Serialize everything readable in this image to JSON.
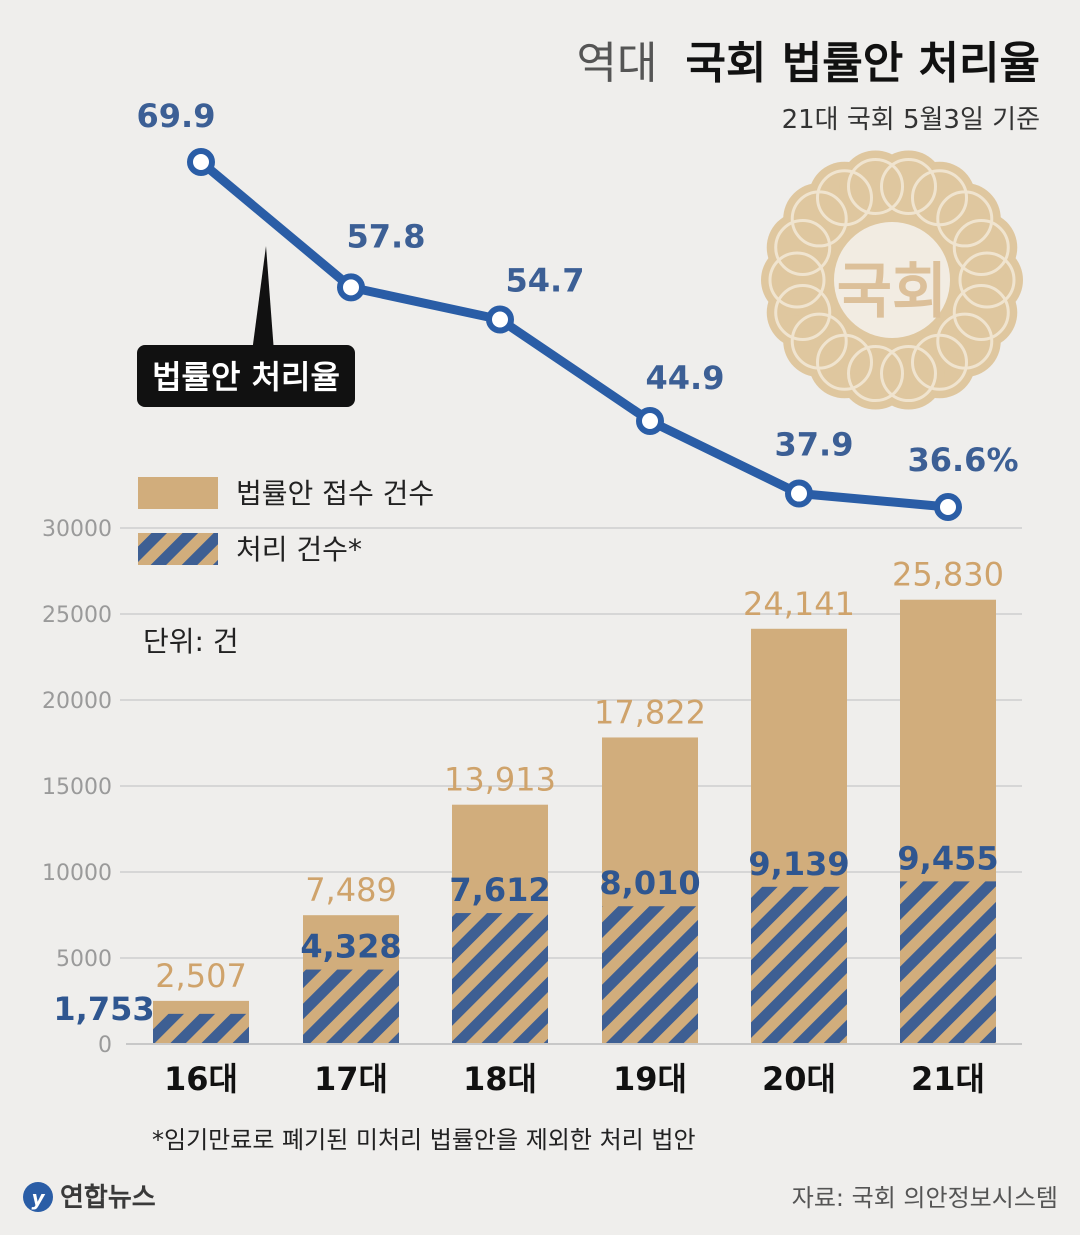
{
  "header": {
    "title_prefix": "역대",
    "title_main": "국회 법률안 처리율",
    "subtitle": "21대 국회 5월3일 기준"
  },
  "seal_text": "국회",
  "line_label": "법률안 처리율",
  "legend": {
    "received": "법률안 접수 건수",
    "processed": "처리 건수*"
  },
  "unit_label": "단위: 건",
  "footnote": "*임기만료로 폐기된 미처리 법률안을 제외한 처리 법안",
  "source": "자료: 국회 의안정보시스템",
  "logo_text": "연합뉴스",
  "colors": {
    "background": "#efeeec",
    "received": "#d1ad7c",
    "processed": "#3e5f93",
    "line": "#2a5da6",
    "rate_text": "#3c5f95",
    "received_text": "#cfa36b",
    "processed_text": "#2f5690",
    "axis_text": "#9a9a9a"
  },
  "chart_data": [
    {
      "type": "line",
      "categories": [
        "16대",
        "17대",
        "18대",
        "19대",
        "20대",
        "21대"
      ],
      "series": [
        {
          "name": "법률안 처리율",
          "values": [
            69.9,
            57.8,
            54.7,
            44.9,
            37.9,
            36.6
          ]
        }
      ],
      "value_labels": [
        "69.9",
        "57.8",
        "54.7",
        "44.9",
        "37.9",
        "36.6%"
      ]
    },
    {
      "type": "bar",
      "categories": [
        "16대",
        "17대",
        "18대",
        "19대",
        "20대",
        "21대"
      ],
      "series": [
        {
          "name": "법률안 접수 건수",
          "values": [
            2507,
            7489,
            13913,
            17822,
            24141,
            25830
          ]
        },
        {
          "name": "처리 건수*",
          "values": [
            1753,
            4328,
            7612,
            8010,
            9139,
            9455
          ]
        }
      ],
      "received_labels": [
        "2,507",
        "7,489",
        "13,913",
        "17,822",
        "24,141",
        "25,830"
      ],
      "processed_labels": [
        "1,753",
        "4,328",
        "7,612",
        "8,010",
        "9,139",
        "9,455"
      ],
      "yticks": [
        0,
        5000,
        10000,
        15000,
        20000,
        25000,
        30000
      ],
      "ylim": [
        0,
        30000
      ],
      "grid": true,
      "bar_layout": "overlapped"
    }
  ]
}
